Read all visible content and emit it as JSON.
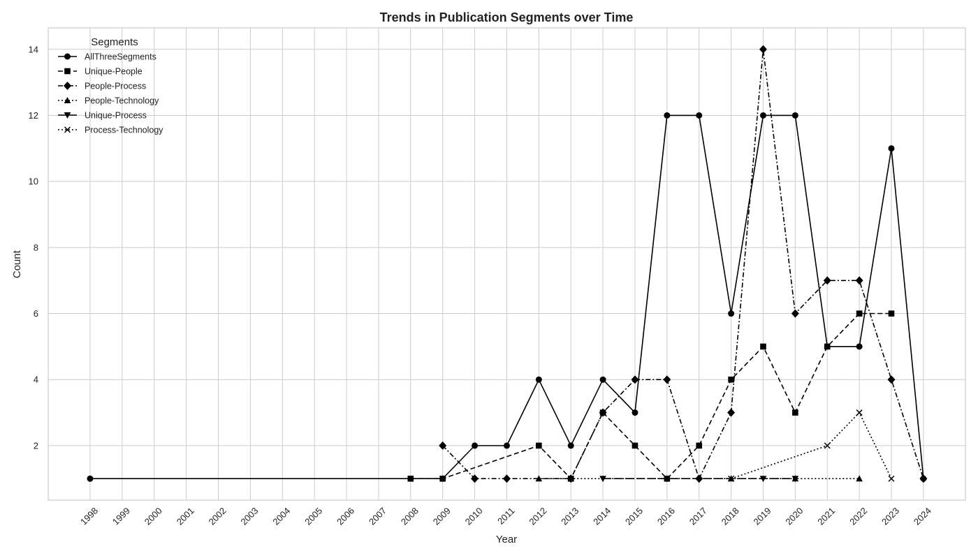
{
  "chart_data": {
    "type": "line",
    "title": "Trends in Publication Segments over Time",
    "xlabel": "Year",
    "ylabel": "Count",
    "categories": [
      "1998",
      "1999",
      "2000",
      "2001",
      "2002",
      "2003",
      "2004",
      "2005",
      "2006",
      "2007",
      "2008",
      "2009",
      "2010",
      "2011",
      "2012",
      "2013",
      "2014",
      "2015",
      "2016",
      "2017",
      "2018",
      "2019",
      "2020",
      "2021",
      "2022",
      "2023",
      "2024"
    ],
    "yticks": [
      2,
      4,
      6,
      8,
      10,
      12,
      14
    ],
    "ylim": [
      0.35,
      14.65
    ],
    "grid": true,
    "legend": {
      "title": "Segments",
      "placement": "top-left"
    },
    "series": [
      {
        "name": "AllThreeSegments",
        "marker": "circle",
        "line_style": "solid",
        "color": "#000000",
        "points": [
          [
            1998,
            1
          ],
          [
            2009,
            1
          ],
          [
            2010,
            2
          ],
          [
            2011,
            2
          ],
          [
            2012,
            4
          ],
          [
            2013,
            2
          ],
          [
            2014,
            4
          ],
          [
            2015,
            3
          ],
          [
            2016,
            12
          ],
          [
            2017,
            12
          ],
          [
            2018,
            6
          ],
          [
            2019,
            12
          ],
          [
            2020,
            12
          ],
          [
            2021,
            5
          ],
          [
            2022,
            5
          ],
          [
            2023,
            11
          ],
          [
            2024,
            1
          ]
        ]
      },
      {
        "name": "Unique-People",
        "marker": "square",
        "line_style": "dashed",
        "color": "#000000",
        "points": [
          [
            2008,
            1
          ],
          [
            2009,
            1
          ],
          [
            2012,
            2
          ],
          [
            2013,
            1
          ],
          [
            2014,
            3
          ],
          [
            2015,
            2
          ],
          [
            2016,
            1
          ],
          [
            2017,
            2
          ],
          [
            2018,
            4
          ],
          [
            2019,
            5
          ],
          [
            2020,
            3
          ],
          [
            2021,
            5
          ],
          [
            2022,
            6
          ],
          [
            2023,
            6
          ]
        ]
      },
      {
        "name": "People-Process",
        "marker": "diamond",
        "line_style": "dashdot",
        "color": "#000000",
        "points": [
          [
            2009,
            2
          ],
          [
            2010,
            1
          ],
          [
            2011,
            1
          ],
          [
            2013,
            1
          ],
          [
            2014,
            3
          ],
          [
            2015,
            4
          ],
          [
            2016,
            4
          ],
          [
            2017,
            1
          ],
          [
            2018,
            3
          ],
          [
            2019,
            14
          ],
          [
            2020,
            6
          ],
          [
            2021,
            7
          ],
          [
            2022,
            7
          ],
          [
            2023,
            4
          ],
          [
            2024,
            1
          ]
        ]
      },
      {
        "name": "People-Technology",
        "marker": "triangle-up",
        "line_style": "dotted",
        "color": "#000000",
        "points": [
          [
            2012,
            1
          ],
          [
            2013,
            1
          ],
          [
            2018,
            1
          ],
          [
            2020,
            1
          ],
          [
            2022,
            1
          ]
        ]
      },
      {
        "name": "Unique-Process",
        "marker": "triangle-down",
        "line_style": "longdash",
        "color": "#000000",
        "points": [
          [
            2014,
            1
          ],
          [
            2016,
            1
          ],
          [
            2019,
            1
          ],
          [
            2020,
            1
          ]
        ]
      },
      {
        "name": "Process-Technology",
        "marker": "x",
        "line_style": "dotted",
        "color": "#000000",
        "points": [
          [
            2018,
            1
          ],
          [
            2021,
            2
          ],
          [
            2022,
            3
          ],
          [
            2023,
            1
          ]
        ]
      }
    ]
  },
  "colors": {
    "grid": "#cccccc",
    "spine": "#cccccc",
    "background": "#ffffff",
    "text": "#222222"
  }
}
